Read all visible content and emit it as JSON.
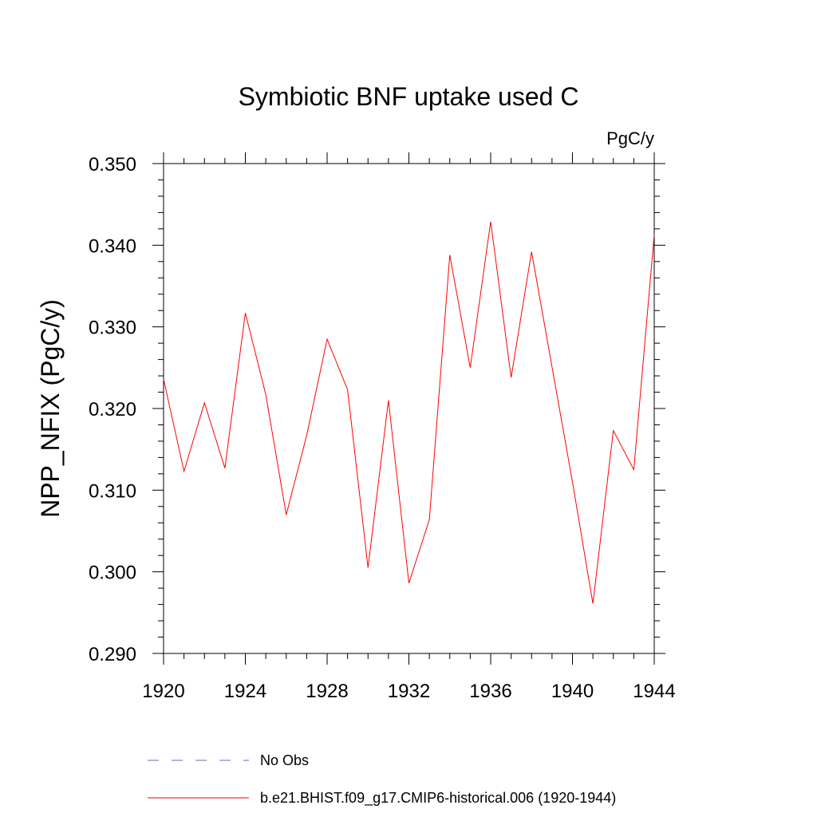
{
  "chart_data": {
    "type": "line",
    "title": "Symbiotic BNF uptake used C",
    "units_label": "PgC/y",
    "xlabel": "",
    "ylabel": "NPP_NFIX  (PgC/y)",
    "xlim": [
      1920,
      1944
    ],
    "ylim": [
      0.29,
      0.35
    ],
    "x_ticks": [
      "1920",
      "1924",
      "1928",
      "1932",
      "1936",
      "1940",
      "1944"
    ],
    "y_ticks": [
      "0.290",
      "0.300",
      "0.310",
      "0.320",
      "0.330",
      "0.340",
      "0.350"
    ],
    "x": [
      1920,
      1921,
      1922,
      1923,
      1924,
      1925,
      1926,
      1927,
      1928,
      1929,
      1930,
      1931,
      1932,
      1933,
      1934,
      1935,
      1936,
      1937,
      1938,
      1939,
      1940,
      1941,
      1942,
      1943,
      1944
    ],
    "series": [
      {
        "name": "b.e21.BHIST.f09_g17.CMIP6-historical.006 (1920-1944)",
        "color": "#ff0000",
        "values": [
          0.3236,
          0.3123,
          0.3207,
          0.3127,
          0.3317,
          0.3217,
          0.307,
          0.3167,
          0.3285,
          0.3223,
          0.3005,
          0.321,
          0.2986,
          0.3064,
          0.3388,
          0.325,
          0.3429,
          0.3238,
          0.3392,
          0.3251,
          0.311,
          0.2961,
          0.3173,
          0.3125,
          0.3413
        ]
      }
    ],
    "legend": [
      {
        "label": "No Obs",
        "color": "#6a6acd",
        "style": "dashed"
      },
      {
        "label": "b.e21.BHIST.f09_g17.CMIP6-historical.006 (1920-1944)",
        "color": "#ff0000",
        "style": "solid"
      }
    ],
    "legend_placement": "bottom",
    "grid": false
  }
}
